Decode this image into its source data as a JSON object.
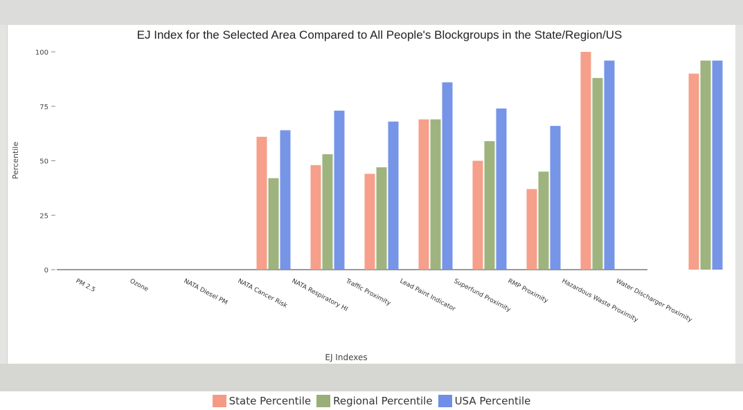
{
  "chart_data": {
    "type": "bar",
    "title": "EJ Index for the Selected Area Compared to All People's Blockgroups in the State/Region/US",
    "xlabel": "EJ Indexes",
    "ylabel": "Percentile",
    "ylim": [
      0,
      100
    ],
    "yticks": [
      "0",
      "25",
      "50",
      "75",
      "100"
    ],
    "categories": [
      "PM 2.5",
      "Ozone",
      "NATA Diesel PM",
      "NATA Cancer Risk",
      "NATA Respiratory HI",
      "Traffic Proximity",
      "Lead Paint Indicator",
      "Superfund Proximity",
      "RMP Proximity",
      "Hazardous Waste Proximity",
      "Water Discharger Proximity"
    ],
    "series": [
      {
        "name": "State Percentile",
        "color": "#f59a84",
        "values": [
          0,
          0,
          61,
          48,
          44,
          69,
          50,
          37,
          100,
          0,
          90
        ]
      },
      {
        "name": "Regional Percentile",
        "color": "#9aaf78",
        "values": [
          0,
          0,
          42,
          53,
          47,
          69,
          59,
          45,
          88,
          0,
          96
        ]
      },
      {
        "name": "USA Percentile",
        "color": "#6f8fe6",
        "values": [
          0,
          0,
          64,
          73,
          68,
          86,
          74,
          66,
          96,
          0,
          96
        ]
      }
    ],
    "legend_position": "bottom",
    "grid": false
  },
  "legend": {
    "state": "State Percentile",
    "regional": "Regional Percentile",
    "usa": "USA Percentile"
  }
}
